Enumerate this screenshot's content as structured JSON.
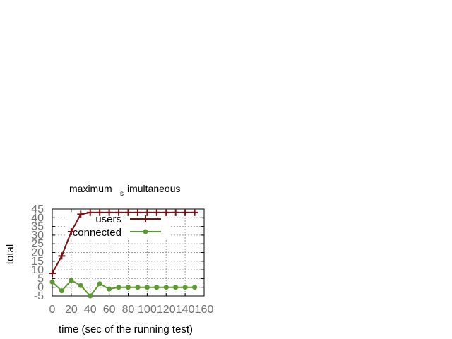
{
  "chart_data": {
    "type": "line",
    "title_main": "maximum",
    "title_sub": "s",
    "title_rest": "imultaneous",
    "xlabel": "time (sec of the running test)",
    "ylabel": "total",
    "xlim": [
      0,
      160
    ],
    "ylim": [
      -5,
      45
    ],
    "xticks": [
      "0",
      "20",
      "40",
      "60",
      "80",
      "100",
      "120",
      "140",
      "160"
    ],
    "yticks": [
      "-5",
      "0",
      "5",
      "10",
      "15",
      "20",
      "25",
      "30",
      "35",
      "40",
      "45"
    ],
    "grid": true,
    "legend_position": "top-left",
    "series": [
      {
        "name": "users",
        "color": "#7a1010",
        "marker": "plus",
        "x": [
          0,
          10,
          20,
          30,
          40,
          50,
          60,
          70,
          80,
          90,
          100,
          110,
          120,
          130,
          140,
          150
        ],
        "y": [
          8,
          18,
          32,
          42,
          43,
          43,
          43,
          43,
          43,
          43,
          43,
          43,
          43,
          43,
          43,
          43
        ]
      },
      {
        "name": "connected",
        "color": "#5a9a2e",
        "marker": "circle",
        "x": [
          0,
          10,
          20,
          30,
          40,
          50,
          60,
          70,
          80,
          90,
          100,
          110,
          120,
          130,
          140,
          150
        ],
        "y": [
          3,
          -2,
          4,
          1,
          -5,
          2,
          -1,
          0,
          0,
          0,
          0,
          0,
          0,
          0,
          0,
          0
        ]
      }
    ]
  }
}
